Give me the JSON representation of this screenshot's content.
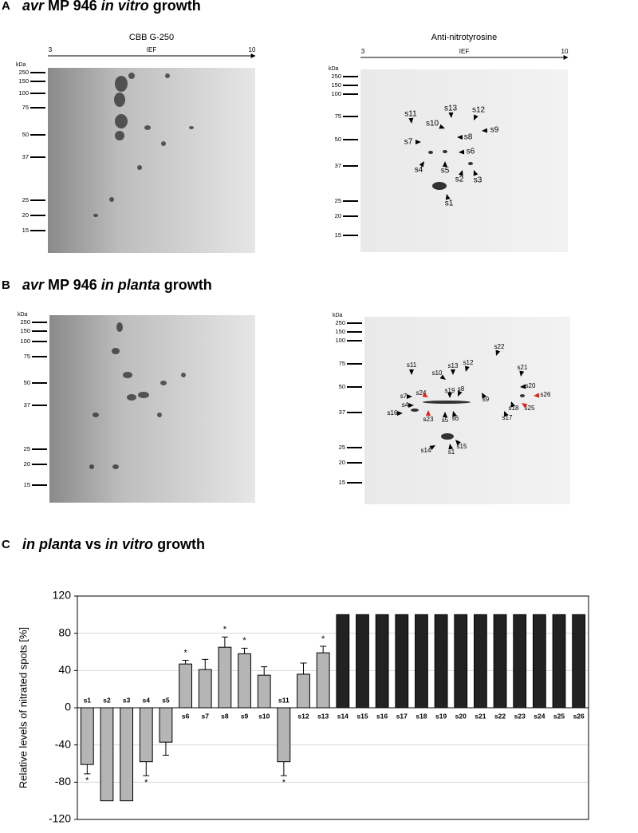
{
  "panels": [
    {
      "letter": "A",
      "title": [
        {
          "text": "avr",
          "italic": true
        },
        {
          "text": " MP 946 "
        },
        {
          "text": "in vitro",
          "italic": true
        },
        {
          "text": " growth"
        }
      ],
      "gels": [
        {
          "caption": "CBB G-250",
          "ief": {
            "start": "3",
            "label": "IEF",
            "end": "10"
          },
          "unit": "kDa",
          "markers": [
            "250",
            "150",
            "100",
            "75",
            "50",
            "37",
            "25",
            "20",
            "15"
          ],
          "spots": []
        },
        {
          "caption": "Anti-nitrotyrosine",
          "ief": {
            "start": "3",
            "label": "IEF",
            "end": "10"
          },
          "unit": "kDa",
          "markers": [
            "250",
            "150",
            "100",
            "75",
            "50",
            "37",
            "25",
            "20",
            "15"
          ],
          "spots": [
            {
              "label": "s11"
            },
            {
              "label": "s13"
            },
            {
              "label": "s12"
            },
            {
              "label": "s10"
            },
            {
              "label": "s9"
            },
            {
              "label": "s8"
            },
            {
              "label": "s7"
            },
            {
              "label": "s6"
            },
            {
              "label": "s4"
            },
            {
              "label": "s5"
            },
            {
              "label": "s2"
            },
            {
              "label": "s3"
            },
            {
              "label": "s1"
            }
          ]
        }
      ]
    },
    {
      "letter": "B",
      "title": [
        {
          "text": "avr",
          "italic": true
        },
        {
          "text": " MP 946 "
        },
        {
          "text": "in planta",
          "italic": true
        },
        {
          "text": " growth"
        }
      ],
      "gels": [
        {
          "unit": "kDa",
          "markers": [
            "250",
            "150",
            "100",
            "75",
            "50",
            "37",
            "25",
            "20",
            "15"
          ],
          "spots": []
        },
        {
          "unit": "kDa",
          "markers": [
            "250",
            "150",
            "100",
            "75",
            "50",
            "37",
            "25",
            "20",
            "15"
          ],
          "spots": [
            {
              "label": "s22"
            },
            {
              "label": "s11"
            },
            {
              "label": "s13"
            },
            {
              "label": "s12"
            },
            {
              "label": "s21"
            },
            {
              "label": "s10"
            },
            {
              "label": "s20"
            },
            {
              "label": "s7"
            },
            {
              "label": "s24",
              "color": "#e0201b"
            },
            {
              "label": "s8"
            },
            {
              "label": "s19"
            },
            {
              "label": "s9"
            },
            {
              "label": "s26",
              "color": "#e0201b"
            },
            {
              "label": "s4"
            },
            {
              "label": "s18"
            },
            {
              "label": "s25",
              "color": "#e0201b"
            },
            {
              "label": "s16"
            },
            {
              "label": "s23",
              "color": "#e0201b"
            },
            {
              "label": "s5"
            },
            {
              "label": "s6"
            },
            {
              "label": "s17"
            },
            {
              "label": "s15"
            },
            {
              "label": "s14"
            },
            {
              "label": "s1"
            }
          ]
        }
      ]
    },
    {
      "letter": "C",
      "title": [
        {
          "text": "in planta",
          "italic": true
        },
        {
          "text": " vs "
        },
        {
          "text": "in vitro",
          "italic": true
        },
        {
          "text": " growth"
        }
      ],
      "gels": []
    }
  ],
  "chart_data": {
    "type": "bar",
    "y_label": "Relative levels of nitrated spots [%]",
    "categories": [
      "s1",
      "s2",
      "s3",
      "s4",
      "s5",
      "s6",
      "s7",
      "s8",
      "s9",
      "s10",
      "s11",
      "s12",
      "s13",
      "s14",
      "s15",
      "s16",
      "s17",
      "s18",
      "s19",
      "s20",
      "s21",
      "s22",
      "s23",
      "s24",
      "s25",
      "s26"
    ],
    "values": [
      -61,
      -100,
      -100,
      -58,
      -37,
      47,
      41,
      65,
      58,
      35,
      -58,
      36,
      59,
      100,
      100,
      100,
      100,
      100,
      100,
      100,
      100,
      100,
      100,
      100,
      100,
      100
    ],
    "errors": [
      10,
      null,
      null,
      15,
      14,
      4,
      11,
      11,
      6,
      9,
      15,
      12,
      7,
      null,
      null,
      null,
      null,
      null,
      null,
      null,
      null,
      null,
      null,
      null,
      null,
      null
    ],
    "significance": [
      "*",
      null,
      null,
      "*",
      null,
      "*",
      null,
      "*",
      "*",
      null,
      "*",
      null,
      "*",
      null,
      null,
      null,
      null,
      null,
      null,
      null,
      null,
      null,
      null,
      null,
      null,
      null
    ],
    "colors": [
      "#b5b5b5",
      "#b5b5b5",
      "#b5b5b5",
      "#b5b5b5",
      "#b5b5b5",
      "#b5b5b5",
      "#b5b5b5",
      "#b5b5b5",
      "#b5b5b5",
      "#b5b5b5",
      "#b5b5b5",
      "#b5b5b5",
      "#b5b5b5",
      "#222222",
      "#222222",
      "#222222",
      "#222222",
      "#222222",
      "#222222",
      "#222222",
      "#222222",
      "#222222",
      "#222222",
      "#222222",
      "#222222",
      "#222222"
    ],
    "ylim": [
      -120,
      120
    ],
    "yticks": [
      -120,
      -80,
      -40,
      0,
      40,
      80,
      120
    ],
    "grid": true
  }
}
